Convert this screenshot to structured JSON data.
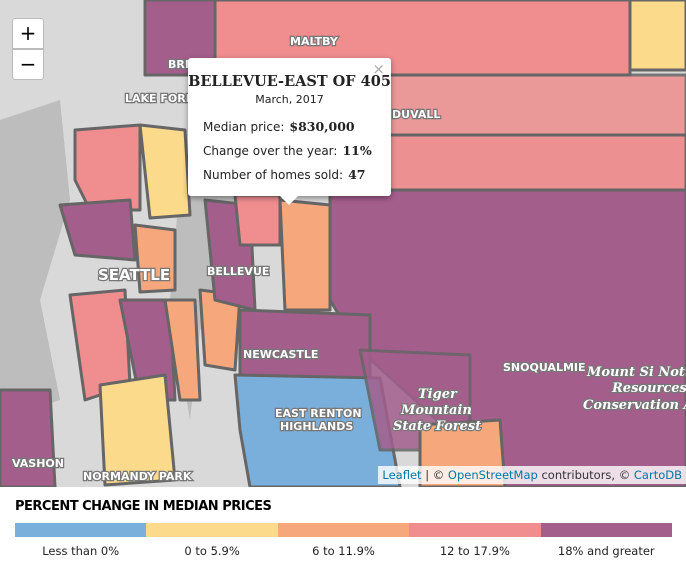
{
  "map": {
    "zoom_in": "+",
    "zoom_out": "−",
    "labels": [
      "BRI",
      "MALTBY",
      "LAKE FORES",
      "DUVALL",
      "SEATTLE",
      "BELLEVUE",
      "NEWCASTLE",
      "SNOQUALMIE",
      "Mount Si Notu",
      "Resources",
      "Conservation Ar",
      "EAST RENTON",
      "HIGHLANDS",
      "Tiger",
      "Mountain",
      "State Forest",
      "VASHON",
      "NORMANDY PARK"
    ],
    "attribution": [
      {
        "text": "Leaflet",
        "link": true
      },
      {
        "text": " | © ",
        "link": false
      },
      {
        "text": "OpenStreetMap",
        "link": true
      },
      {
        "text": " contributors, © ",
        "link": false
      },
      {
        "text": "CartoDB",
        "link": true
      }
    ]
  },
  "popup": {
    "close": "×",
    "title": "BELLEVUE-EAST OF 405",
    "date": "March, 2017",
    "rows": [
      {
        "label": "Median price:",
        "value": "$830,000"
      },
      {
        "label": "Change over the year:",
        "value": "11%"
      },
      {
        "label": "Number of homes sold:",
        "value": "47"
      }
    ]
  },
  "legend": {
    "title": "PERCENT CHANGE IN MEDIAN PRICES",
    "items": [
      {
        "label": "Less than 0%",
        "color": "#7aafdc"
      },
      {
        "label": "0 to 5.9%",
        "color": "#fcda8b"
      },
      {
        "label": "6 to 11.9%",
        "color": "#f6a77b"
      },
      {
        "label": "12 to 17.9%",
        "color": "#ef8d8f"
      },
      {
        "label": "18% and greater",
        "color": "#a45e8c"
      }
    ]
  }
}
